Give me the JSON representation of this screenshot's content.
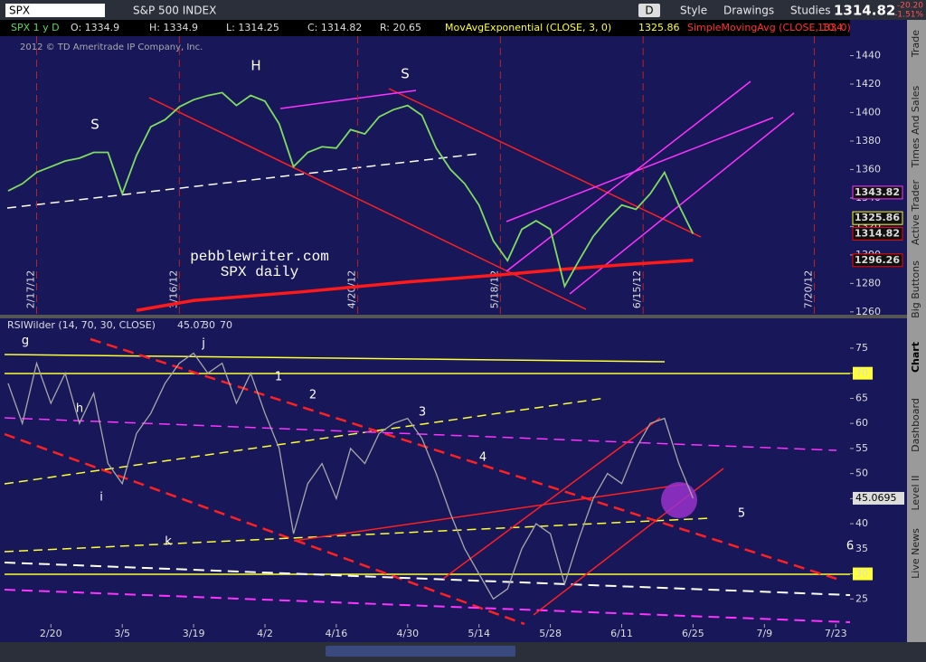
{
  "toolbar": {
    "symbol": "SPX",
    "description": "S&P 500 INDEX",
    "period_button": "D",
    "buttons": [
      "Style",
      "Drawings",
      "Studies"
    ],
    "last": "1314.82",
    "change": "-20.20",
    "change_pct": "-1.51%"
  },
  "info_bar": {
    "symbol_period": "SPX 1 y D",
    "open": "O: 1334.9",
    "high": "H: 1334.9",
    "low": "L: 1314.25",
    "close": "C: 1314.82",
    "range": "R: 20.65",
    "studies": [
      {
        "name": "MovAvgExponential (CLOSE, 3, 0)",
        "value": "1325.86"
      },
      {
        "name": "SimpleMovingAvg (CLOSE, 10, 0)",
        "value": "1334."
      }
    ]
  },
  "copyright": "2012 © TD Ameritrade IP Company, Inc.",
  "chart_data": [
    {
      "type": "line",
      "x": [
        -6,
        -4,
        -2,
        0,
        2,
        4,
        6,
        8,
        10,
        12,
        14,
        16,
        18,
        20,
        22,
        24,
        26,
        28,
        30,
        32,
        34,
        36,
        38,
        40,
        42,
        44,
        46,
        48,
        50,
        52,
        54,
        56,
        58,
        60,
        62,
        64,
        66,
        68,
        70,
        72,
        74,
        76,
        78,
        80,
        82,
        84,
        86,
        88,
        90
      ],
      "series": [
        {
          "color": "#7fdc5f",
          "values": [
            1345,
            1350,
            1358,
            1362,
            1366,
            1368,
            1372,
            1372,
            1343,
            1370,
            1390,
            1395,
            1404,
            1409,
            1412,
            1414,
            1405,
            1412,
            1408,
            1392,
            1362,
            1372,
            1376,
            1375,
            1388,
            1385,
            1397,
            1402,
            1405,
            1398,
            1375,
            1360,
            1350,
            1335,
            1310,
            1296,
            1318,
            1324,
            1318,
            1278,
            1296,
            1313,
            1325,
            1335,
            1332,
            1343,
            1358,
            1335,
            1314.82
          ]
        }
      ],
      "ma": {
        "color": "#ff1a1a",
        "x": [
          12,
          20,
          35,
          50,
          63,
          72,
          80,
          90
        ],
        "values": [
          1261,
          1268,
          1274,
          1281,
          1286,
          1290,
          1293,
          1296.26
        ]
      },
      "xlim": [
        -6.5,
        112
      ],
      "ylim": [
        1258,
        1460
      ],
      "yticks": [
        1260,
        1280,
        1300,
        1320,
        1340,
        1360,
        1380,
        1400,
        1420,
        1440
      ],
      "period_markers": [
        {
          "value": -2,
          "label": "2/17/12"
        },
        {
          "value": 18,
          "label": "3/16/12"
        },
        {
          "value": 43,
          "label": "4/20/12"
        },
        {
          "value": 63,
          "label": "5/18/12"
        },
        {
          "value": 83,
          "label": "6/15/12"
        },
        {
          "value": 107,
          "label": "7/20/12"
        }
      ],
      "price_labels": [
        {
          "value": 1343.82,
          "color": "#ff33ff"
        },
        {
          "value": 1325.86,
          "color": "#ffff00"
        },
        {
          "value": 1314.82,
          "color": "#ff0000"
        },
        {
          "value": 1296.26,
          "color": "#ff0000"
        }
      ],
      "annotations": [
        "S",
        "H",
        "S"
      ],
      "watermark": [
        "pebblewriter.com",
        "SPX daily"
      ]
    },
    {
      "type": "line",
      "title": "RSIWilder (14, 70, 30, CLOSE)",
      "title_value": 45.07,
      "x": [
        -6,
        -4,
        -2,
        0,
        2,
        4,
        6,
        8,
        10,
        12,
        14,
        16,
        18,
        20,
        22,
        24,
        26,
        28,
        30,
        32,
        34,
        36,
        38,
        40,
        42,
        44,
        46,
        48,
        50,
        52,
        54,
        56,
        58,
        60,
        62,
        64,
        66,
        68,
        70,
        72,
        74,
        76,
        78,
        80,
        82,
        84,
        86,
        88,
        90
      ],
      "values": [
        68,
        60,
        72,
        64,
        70,
        60,
        66,
        52,
        48,
        58,
        62,
        68,
        72,
        74,
        70,
        72,
        64,
        70,
        62,
        55,
        38,
        48,
        52,
        45,
        55,
        52,
        58,
        60,
        61,
        57,
        50,
        42,
        35,
        30,
        25,
        27,
        35,
        40,
        38,
        28,
        37,
        45,
        50,
        48,
        55,
        60,
        61,
        52,
        45.0695
      ],
      "color": "#a8a8a8",
      "overbought": 70,
      "oversold": 30,
      "xlim": [
        -6.5,
        112
      ],
      "ylim": [
        20,
        77.7
      ],
      "yticks": [
        25,
        30,
        35,
        40,
        45,
        50,
        55,
        60,
        65,
        70,
        75
      ],
      "xticks": [
        {
          "value": 0,
          "label": "2/20"
        },
        {
          "value": 10,
          "label": "3/5"
        },
        {
          "value": 20,
          "label": "3/19"
        },
        {
          "value": 30,
          "label": "4/2"
        },
        {
          "value": 40,
          "label": "4/16"
        },
        {
          "value": 50,
          "label": "4/30"
        },
        {
          "value": 60,
          "label": "5/14"
        },
        {
          "value": 70,
          "label": "5/28"
        },
        {
          "value": 80,
          "label": "6/11"
        },
        {
          "value": 90,
          "label": "6/25"
        },
        {
          "value": 100,
          "label": "7/9"
        },
        {
          "value": 110,
          "label": "7/23"
        }
      ],
      "annotations": [
        "g",
        "j",
        "h",
        "i",
        "k",
        "1",
        "2",
        "3",
        "4",
        "5",
        "6"
      ]
    }
  ],
  "side_tabs": [
    "Trade",
    "Times And Sales",
    "Active Trader",
    "Big Buttons",
    "Chart",
    "Dashboard",
    "Level II",
    "Live News"
  ]
}
